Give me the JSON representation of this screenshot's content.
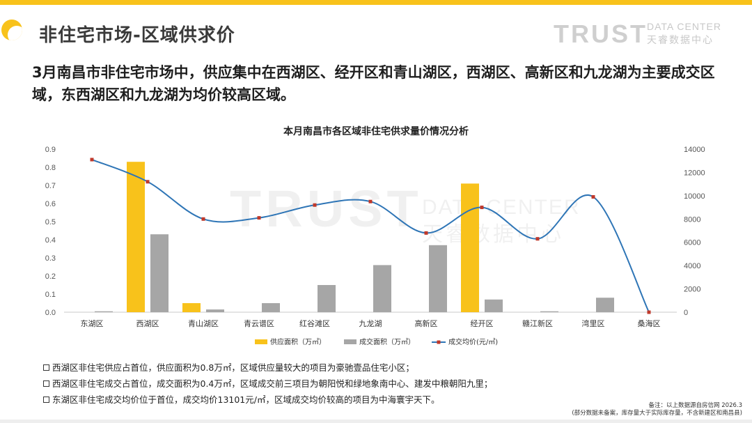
{
  "header": {
    "title": "非住宅市场-区域供求价",
    "logo_main": "TRUST",
    "logo_sub_en": "DATA CENTER",
    "logo_sub_cn": "天睿数据中心"
  },
  "summary": "3月南昌市非住宅市场中，供应集中在西湖区、经开区和青山湖区，西湖区、高新区和九龙湖为主要成交区域，东西湖区和九龙湖为均价较高区域。",
  "chart_data": {
    "type": "bar",
    "title": "本月南昌市各区域非住宅供求量价情况分析",
    "categories": [
      "东湖区",
      "西湖区",
      "青山湖区",
      "青云谱区",
      "红谷滩区",
      "九龙湖",
      "高新区",
      "经开区",
      "赣江新区",
      "湾里区",
      "桑海区"
    ],
    "series": [
      {
        "name": "供应面积（万㎡）",
        "type": "bar",
        "axis": "left",
        "color": "#F8C21B",
        "values": [
          0,
          0.83,
          0.05,
          0,
          0,
          0,
          0,
          0.71,
          0,
          0,
          0
        ]
      },
      {
        "name": "成交面积（万㎡）",
        "type": "bar",
        "axis": "left",
        "color": "#A6A6A6",
        "values": [
          0.005,
          0.43,
          0.015,
          0.05,
          0.15,
          0.26,
          0.37,
          0.07,
          0.005,
          0.08,
          0
        ]
      },
      {
        "name": "成交均价(元/㎡)",
        "type": "line",
        "axis": "right",
        "color": "#2E75B6",
        "marker_color": "#C0392B",
        "values": [
          13101,
          11200,
          8000,
          8100,
          9200,
          9500,
          6800,
          9000,
          6300,
          9900,
          0
        ]
      }
    ],
    "left_axis": {
      "min": 0,
      "max": 0.9,
      "ticks": [
        "0.0",
        "0.1",
        "0.2",
        "0.3",
        "0.4",
        "0.5",
        "0.6",
        "0.7",
        "0.8",
        "0.9"
      ]
    },
    "right_axis": {
      "min": 0,
      "max": 14000,
      "ticks": [
        "0",
        "2000",
        "4000",
        "6000",
        "8000",
        "10000",
        "12000",
        "14000"
      ]
    },
    "legend_position": "bottom",
    "grid": false,
    "watermark": {
      "main": "TRUST",
      "en": "DATA CENTER",
      "cn": "天睿数据中心"
    }
  },
  "notes": [
    "西湖区非住宅供应占首位，供应面积为0.8万㎡，区域供应量较大的项目为豪驰壹品住宅小区；",
    "西湖区非住宅成交占首位，成交面积为0.4万㎡，区域成交前三项目为朝阳悦和绿地象南中心、建发中粮朝阳九里；",
    "东湖区非住宅成交均价位于首位，成交均价13101元/㎡，区域成交均价较高的项目为中海寰宇天下。"
  ],
  "remark": {
    "line1": "备注：以上数据源自房信网 2026.3",
    "line2": "(部分数据未备案，库存量大于实际库存量，不含新建区和南昌县)"
  }
}
